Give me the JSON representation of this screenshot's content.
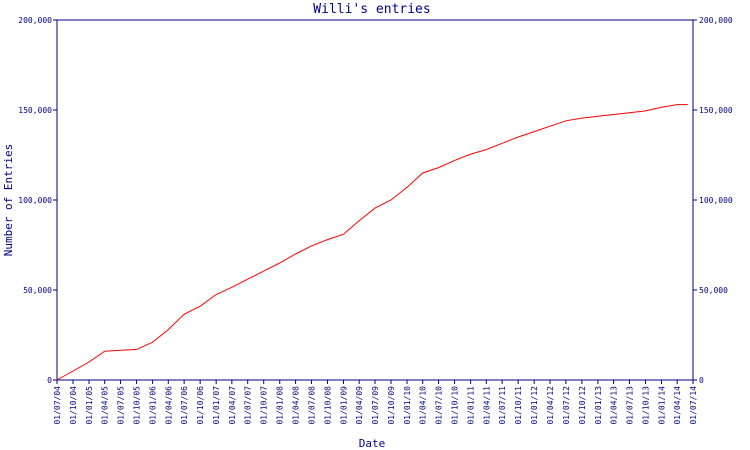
{
  "chart_data": {
    "type": "line",
    "title": "Willi's entries",
    "xlabel": "Date",
    "ylabel": "Number of Entries",
    "x_tick_labels": [
      "01/07/04",
      "01/10/04",
      "01/01/05",
      "01/04/05",
      "01/07/05",
      "01/10/05",
      "01/01/06",
      "01/04/06",
      "01/07/06",
      "01/10/06",
      "01/01/07",
      "01/04/07",
      "01/07/07",
      "01/10/07",
      "01/01/08",
      "01/04/08",
      "01/07/08",
      "01/10/08",
      "01/01/09",
      "01/04/09",
      "01/07/09",
      "01/10/09",
      "01/01/10",
      "01/04/10",
      "01/07/10",
      "01/10/10",
      "01/01/11",
      "01/04/11",
      "01/07/11",
      "01/10/11",
      "01/01/12",
      "01/04/12",
      "01/07/12",
      "01/10/12",
      "01/01/13",
      "01/04/13",
      "01/07/13",
      "01/10/13",
      "01/01/14",
      "01/04/14",
      "01/07/14"
    ],
    "y_ticks": [
      0,
      50000,
      100000,
      150000,
      200000
    ],
    "y_tick_labels": [
      "0",
      "50,000",
      "100,000",
      "150,000",
      "200,000"
    ],
    "ylim": [
      0,
      200000
    ],
    "line_color": "#ff0000",
    "axis_color": "#000080",
    "series": [
      {
        "x": [
          "01/07/04",
          "01/10/04",
          "01/01/05",
          "01/04/05",
          "01/07/05",
          "01/10/05",
          "01/01/06",
          "01/04/06",
          "01/07/06",
          "01/10/06",
          "01/01/07",
          "01/04/07",
          "01/07/07",
          "01/10/07",
          "01/01/08",
          "01/04/08",
          "01/07/08",
          "01/10/08",
          "01/01/09",
          "01/04/09",
          "01/07/09",
          "01/10/09",
          "01/01/10",
          "01/04/10",
          "01/07/10",
          "01/10/10",
          "01/01/11",
          "01/04/11",
          "01/07/11",
          "01/10/11",
          "01/01/12",
          "01/04/12",
          "01/07/12",
          "01/10/12",
          "01/01/13",
          "01/04/13",
          "01/07/13",
          "01/10/13",
          "01/01/14",
          "01/04/14",
          "01/06/14"
        ],
        "values": [
          0,
          5000,
          10000,
          16000,
          16500,
          17000,
          21000,
          28000,
          36500,
          41000,
          47500,
          51500,
          56000,
          60500,
          65000,
          70000,
          74500,
          78000,
          81000,
          88500,
          95500,
          100000,
          107000,
          115000,
          118000,
          122000,
          125500,
          128000,
          131500,
          135000,
          138000,
          141000,
          144000,
          145500,
          146500,
          147500,
          148500,
          149500,
          151500,
          153000,
          153000
        ]
      }
    ]
  }
}
